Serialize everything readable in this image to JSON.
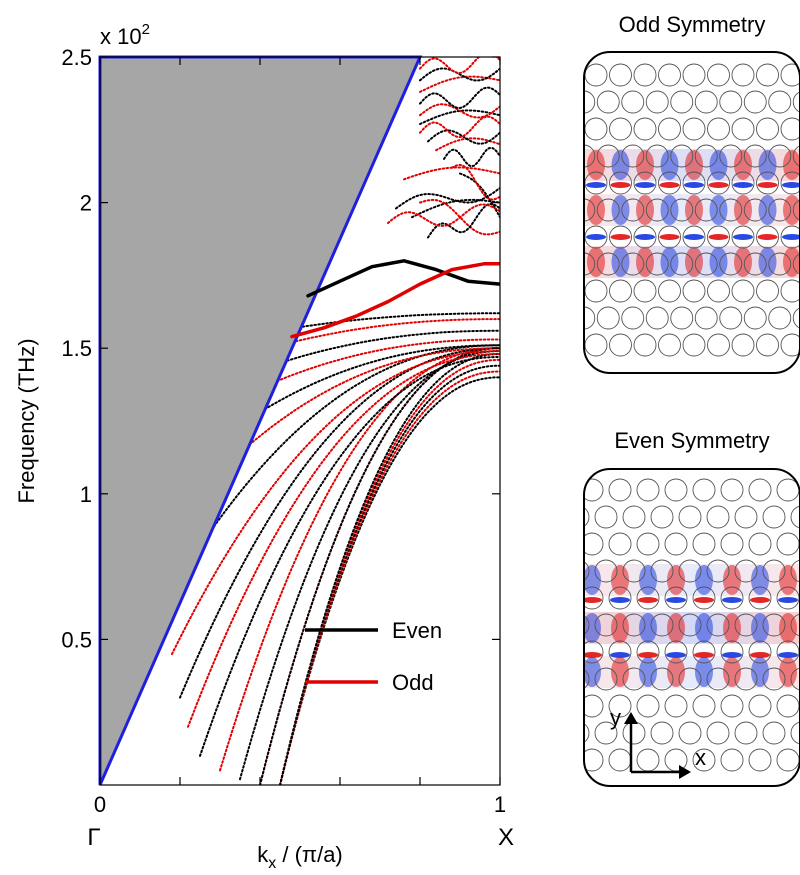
{
  "chart_data": [
    {
      "type": "line",
      "xlabel_main": "k",
      "xlabel_sub": "x",
      "xlabel_rest": " / (π/a)",
      "ylabel": "Frequency (THz)",
      "multiplier": {
        "prefix": "x 10",
        "exponent": "2"
      },
      "xlim": [
        0,
        1
      ],
      "ylim": [
        0,
        2.5
      ],
      "x_ticks": [
        0,
        0.2,
        0.4,
        0.6,
        0.8,
        1
      ],
      "x_tick_labels": [
        {
          "x": 0,
          "text": "0"
        },
        {
          "x": 1,
          "text": "1"
        }
      ],
      "x_point_labels": [
        {
          "x": 0,
          "text": "Γ"
        },
        {
          "x": 1,
          "text": "X"
        }
      ],
      "y_ticks": [
        0.5,
        1,
        1.5,
        2,
        2.5
      ],
      "y_tick_labels": [
        "0.5",
        "1",
        "1.5",
        "2",
        "2.5"
      ],
      "light_cone": {
        "x": [
          0,
          0,
          0.8
        ],
        "y": [
          0,
          2.5,
          2.5
        ],
        "fill": "#a6a6a6",
        "edge": "#1f1fe0"
      },
      "legend": {
        "placement": "bottom-right",
        "entries": [
          {
            "label": "Even",
            "color": "#000000"
          },
          {
            "label": "Odd",
            "color": "#e00000"
          }
        ]
      },
      "series": [
        {
          "name": "Even",
          "color": "#000000",
          "x": [
            0.52,
            0.6,
            0.68,
            0.76,
            0.84,
            0.92,
            1.0
          ],
          "y": [
            1.68,
            1.73,
            1.78,
            1.8,
            1.77,
            1.73,
            1.72
          ]
        },
        {
          "name": "Odd",
          "color": "#e00000",
          "x": [
            0.48,
            0.56,
            0.64,
            0.72,
            0.8,
            0.88,
            0.96,
            1.0
          ],
          "y": [
            1.54,
            1.57,
            1.61,
            1.66,
            1.72,
            1.77,
            1.79,
            1.79
          ]
        }
      ]
    },
    {
      "type": "heatmap",
      "title": "Odd Symmetry"
    },
    {
      "type": "heatmap",
      "title": "Even Symmetry",
      "axis_labels": {
        "x": "x",
        "y": "y"
      }
    }
  ]
}
